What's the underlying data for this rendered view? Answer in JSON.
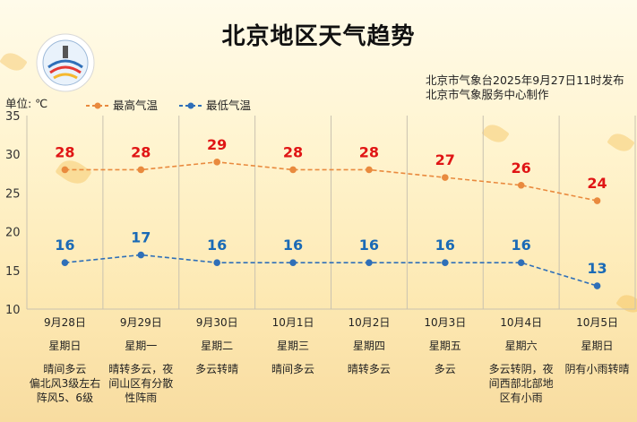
{
  "title": "北京地区天气趋势",
  "publisher_line1": "北京市气象台2025年9月27日11时发布",
  "publisher_line2": "北京市气象服务中心制作",
  "unit_label": "单位: ℃",
  "colors": {
    "high": "#e98a3e",
    "low": "#2f6fb8",
    "high_label": "#e01515",
    "low_label": "#1a6ab6"
  },
  "chart_data": {
    "type": "line",
    "ylim": [
      10,
      35
    ],
    "yticks": [
      10,
      15,
      20,
      25,
      30,
      35
    ],
    "grid": "vertical",
    "legend_position": "top",
    "categories": [
      "9月28日",
      "9月29日",
      "9月30日",
      "10月1日",
      "10月2日",
      "10月3日",
      "10月4日",
      "10月5日"
    ],
    "series": [
      {
        "name": "最高气温",
        "values": [
          28,
          28,
          29,
          28,
          28,
          27,
          26,
          24
        ]
      },
      {
        "name": "最低气温",
        "values": [
          16,
          17,
          16,
          16,
          16,
          16,
          16,
          13
        ]
      }
    ]
  },
  "days": [
    {
      "date": "9月28日",
      "weekday": "星期日",
      "desc": "晴间多云\n偏北风3级左右\n阵风5、6级"
    },
    {
      "date": "9月29日",
      "weekday": "星期一",
      "desc": "晴转多云，夜间山区有分散性阵雨"
    },
    {
      "date": "9月30日",
      "weekday": "星期二",
      "desc": "多云转晴"
    },
    {
      "date": "10月1日",
      "weekday": "星期三",
      "desc": "晴间多云"
    },
    {
      "date": "10月2日",
      "weekday": "星期四",
      "desc": "晴转多云"
    },
    {
      "date": "10月3日",
      "weekday": "星期五",
      "desc": "多云"
    },
    {
      "date": "10月4日",
      "weekday": "星期六",
      "desc": "多云转阴，夜间西部北部地区有小雨"
    },
    {
      "date": "10月5日",
      "weekday": "星期日",
      "desc": "阴有小雨转晴"
    }
  ]
}
